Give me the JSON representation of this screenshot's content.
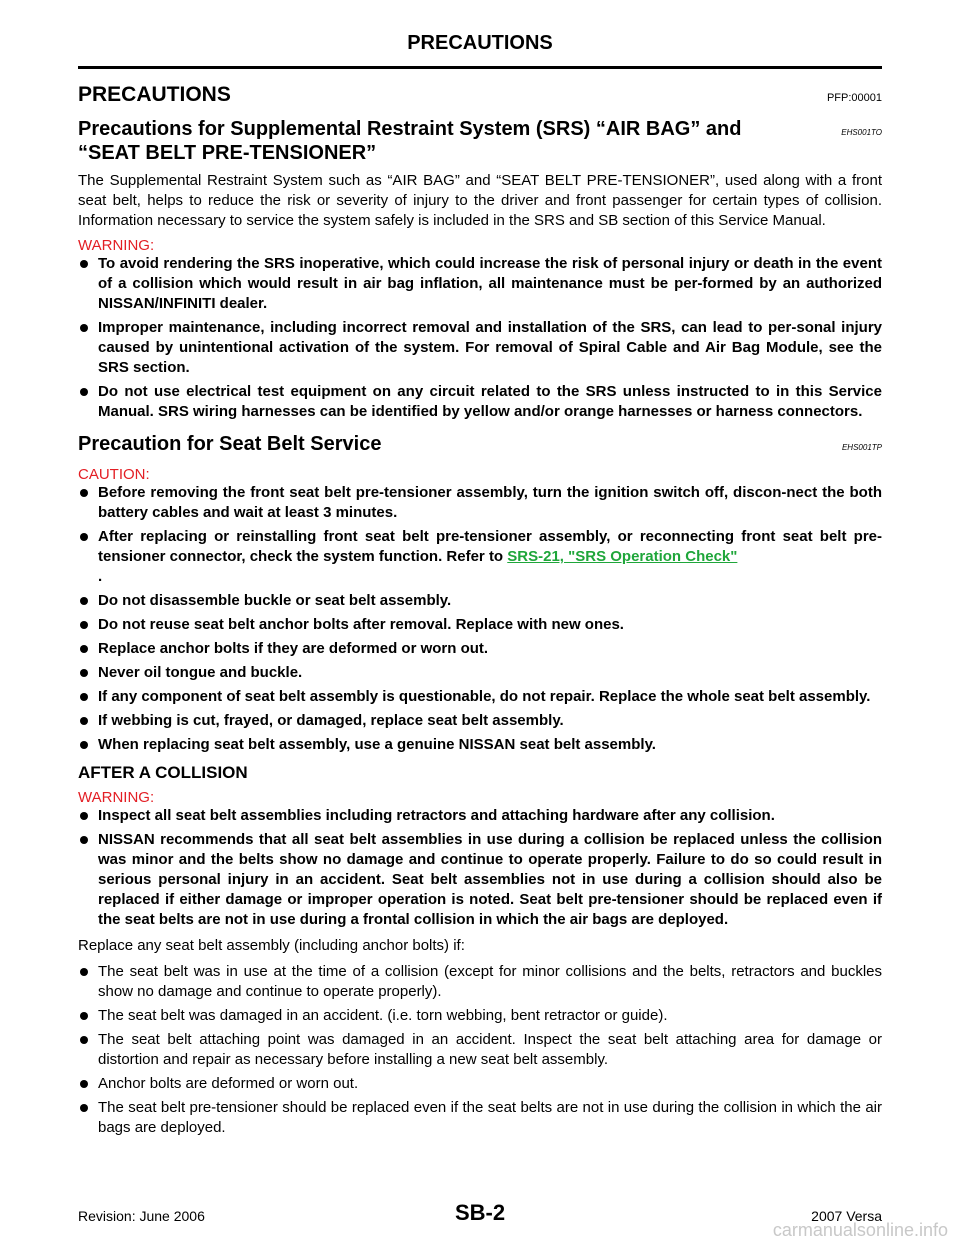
{
  "header": {
    "title": "PRECAUTIONS"
  },
  "section": {
    "title": "PRECAUTIONS",
    "code": "PFP:00001"
  },
  "srs": {
    "heading": "Precautions for Supplemental Restraint System (SRS) “AIR BAG” and “SEAT BELT PRE-TENSIONER”",
    "code": "EHS001TO",
    "body": "The Supplemental Restraint System such as “AIR BAG” and “SEAT BELT PRE-TENSIONER”, used along with a front seat belt, helps to reduce the risk or severity of injury to the driver and front passenger for certain types of collision. Information necessary to service the system safely is included in the SRS and SB section of this Service Manual.",
    "label": "WARNING:",
    "items": [
      "To avoid rendering the SRS inoperative, which could increase the risk of personal injury or death in the event of a collision which would result in air bag inflation, all maintenance must be per-formed by an authorized NISSAN/INFINITI dealer.",
      "Improper maintenance, including incorrect removal and installation of the SRS, can lead to per-sonal injury caused by unintentional activation of the system. For removal of Spiral Cable and Air Bag Module, see the SRS section.",
      "Do not use electrical test equipment on any circuit related to the SRS unless instructed to in this Service Manual. SRS wiring harnesses can be identified by yellow and/or orange harnesses or harness connectors."
    ]
  },
  "service": {
    "heading": "Precaution for Seat Belt Service",
    "code": "EHS001TP",
    "label": "CAUTION:",
    "items": [
      "Before removing the front seat belt pre-tensioner assembly, turn the ignition switch off, discon-nect the both battery cables and wait at least 3 minutes.",
      {
        "text": "After replacing or reinstalling front seat belt pre-tensioner assembly, or reconnecting front seat belt pre-tensioner connector, check the system function. Refer to ",
        "link": "SRS-21, \"SRS Operation Check\"",
        "after": "."
      },
      "Do not disassemble buckle or seat belt assembly.",
      "Do not reuse seat belt anchor bolts after removal. Replace with new ones.",
      "Replace anchor bolts if they are deformed or worn out.",
      "Never oil tongue and buckle.",
      "If any component of seat belt assembly is questionable, do not repair. Replace the whole seat belt assembly.",
      "If webbing is cut, frayed, or damaged, replace seat belt assembly.",
      "When replacing seat belt assembly, use a genuine NISSAN seat belt assembly."
    ]
  },
  "collision": {
    "heading": "AFTER A COLLISION",
    "label": "WARNING:",
    "items": [
      "Inspect all seat belt assemblies including retractors and attaching hardware after any collision.",
      "NISSAN recommends that all seat belt assemblies in use during a collision be replaced unless the collision was minor and the belts show no damage and continue to operate properly. Failure to do so could result in serious personal injury in an accident. Seat belt assemblies not in use during a collision should also be replaced if either damage or improper operation is noted. Seat belt pre-tensioner should be replaced even if the seat belts are not in use during a frontal collision in which the air bags are deployed."
    ],
    "body": "Replace any seat belt assembly (including anchor bolts) if:",
    "conditions": [
      "The seat belt was in use at the time of a collision (except for minor collisions and the belts, retractors and buckles show no damage and continue to operate properly).",
      "The seat belt was damaged in an accident. (i.e. torn webbing, bent retractor or guide).",
      "The seat belt attaching point was damaged in an accident. Inspect the seat belt attaching area for damage or distortion and repair as necessary before installing a new seat belt assembly.",
      "Anchor bolts are deformed or worn out.",
      "The seat belt pre-tensioner should be replaced even if the seat belts are not in use during the collision in which the air bags are deployed."
    ]
  },
  "footer": {
    "revision": "Revision: June 2006",
    "page": "SB-2",
    "model": "2007 Versa",
    "watermark": "carmanualsonline.info"
  }
}
